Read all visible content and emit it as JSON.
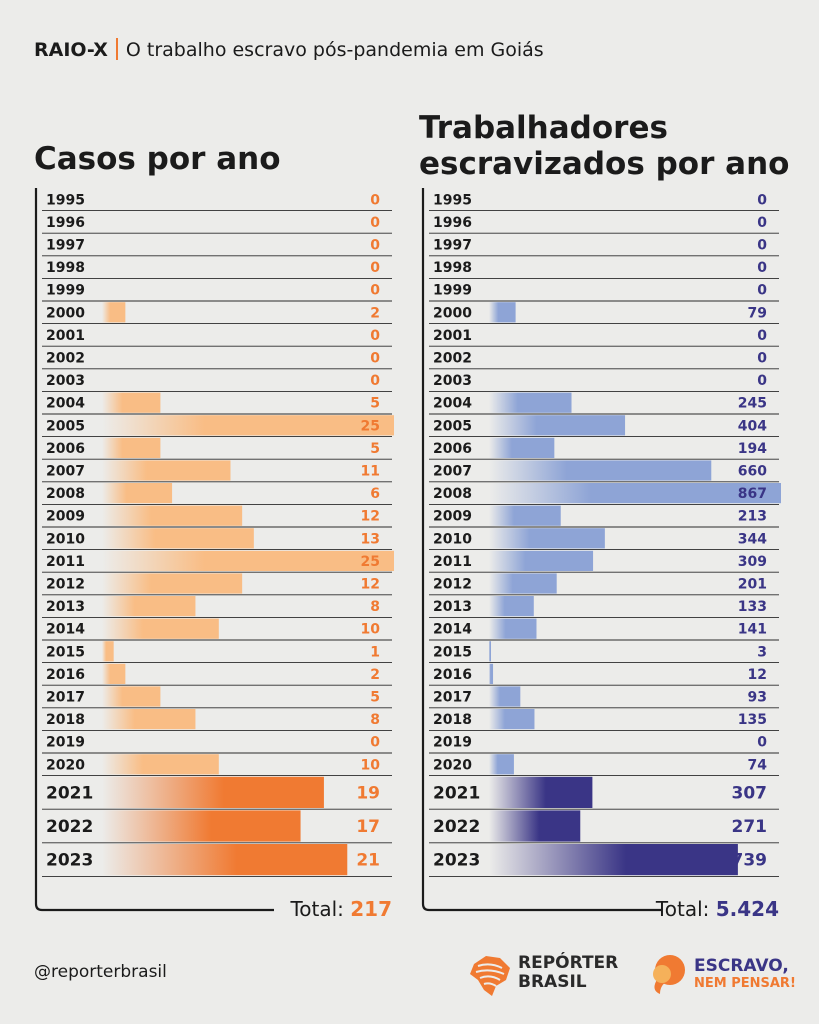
{
  "header": {
    "brand": "RAIO-X",
    "subtitle": "O trabalho escravo pós-pandemia em Goiás"
  },
  "chart_data": [
    {
      "type": "bar",
      "title": "Casos por ano",
      "color": "#f07a32",
      "categories": [
        "1995",
        "1996",
        "1997",
        "1998",
        "1999",
        "2000",
        "2001",
        "2002",
        "2003",
        "2004",
        "2005",
        "2006",
        "2007",
        "2008",
        "2009",
        "2010",
        "2011",
        "2012",
        "2013",
        "2014",
        "2015",
        "2016",
        "2017",
        "2018",
        "2019",
        "2020",
        "2021",
        "2022",
        "2023"
      ],
      "values": [
        0,
        0,
        0,
        0,
        0,
        2,
        0,
        0,
        0,
        5,
        25,
        5,
        11,
        6,
        12,
        13,
        25,
        12,
        8,
        10,
        1,
        2,
        5,
        8,
        0,
        10,
        19,
        17,
        21
      ],
      "value_labels": [
        "0",
        "0",
        "0",
        "0",
        "0",
        "2",
        "0",
        "0",
        "0",
        "5",
        "25",
        "5",
        "11",
        "6",
        "12",
        "13",
        "25",
        "12",
        "8",
        "10",
        "1",
        "2",
        "5",
        "8",
        "0",
        "10",
        "19",
        "17",
        "21"
      ],
      "highlight": [
        "2021",
        "2022",
        "2023"
      ],
      "total_label": "Total:",
      "total_value": "217"
    },
    {
      "type": "bar",
      "title": "Trabalhadores escravizados por ano",
      "color": "#3a3586",
      "categories": [
        "1995",
        "1996",
        "1997",
        "1998",
        "1999",
        "2000",
        "2001",
        "2002",
        "2003",
        "2004",
        "2005",
        "2006",
        "2007",
        "2008",
        "2009",
        "2010",
        "2011",
        "2012",
        "2013",
        "2014",
        "2015",
        "2016",
        "2017",
        "2018",
        "2019",
        "2020",
        "2021",
        "2022",
        "2023"
      ],
      "values": [
        0,
        0,
        0,
        0,
        0,
        79,
        0,
        0,
        0,
        245,
        404,
        194,
        660,
        867,
        213,
        344,
        309,
        201,
        133,
        141,
        3,
        12,
        93,
        135,
        0,
        74,
        307,
        271,
        739
      ],
      "value_labels": [
        "0",
        "0",
        "0",
        "0",
        "0",
        "79",
        "0",
        "0",
        "0",
        "245",
        "404",
        "194",
        "660",
        "867",
        "213",
        "344",
        "309",
        "201",
        "133",
        "141",
        "3",
        "12",
        "93",
        "135",
        "0",
        "74",
        "307",
        "271",
        "739"
      ],
      "highlight": [
        "2021",
        "2022",
        "2023"
      ],
      "total_label": "Total:",
      "total_value": "5.424"
    }
  ],
  "footer": {
    "handle": "@reporterbrasil",
    "logo_reporter_line1": "REPÓRTER",
    "logo_reporter_line2": "BRASIL",
    "logo_escravo_line1": "ESCRAVO,",
    "logo_escravo_line2": "NEM PENSAR!"
  }
}
